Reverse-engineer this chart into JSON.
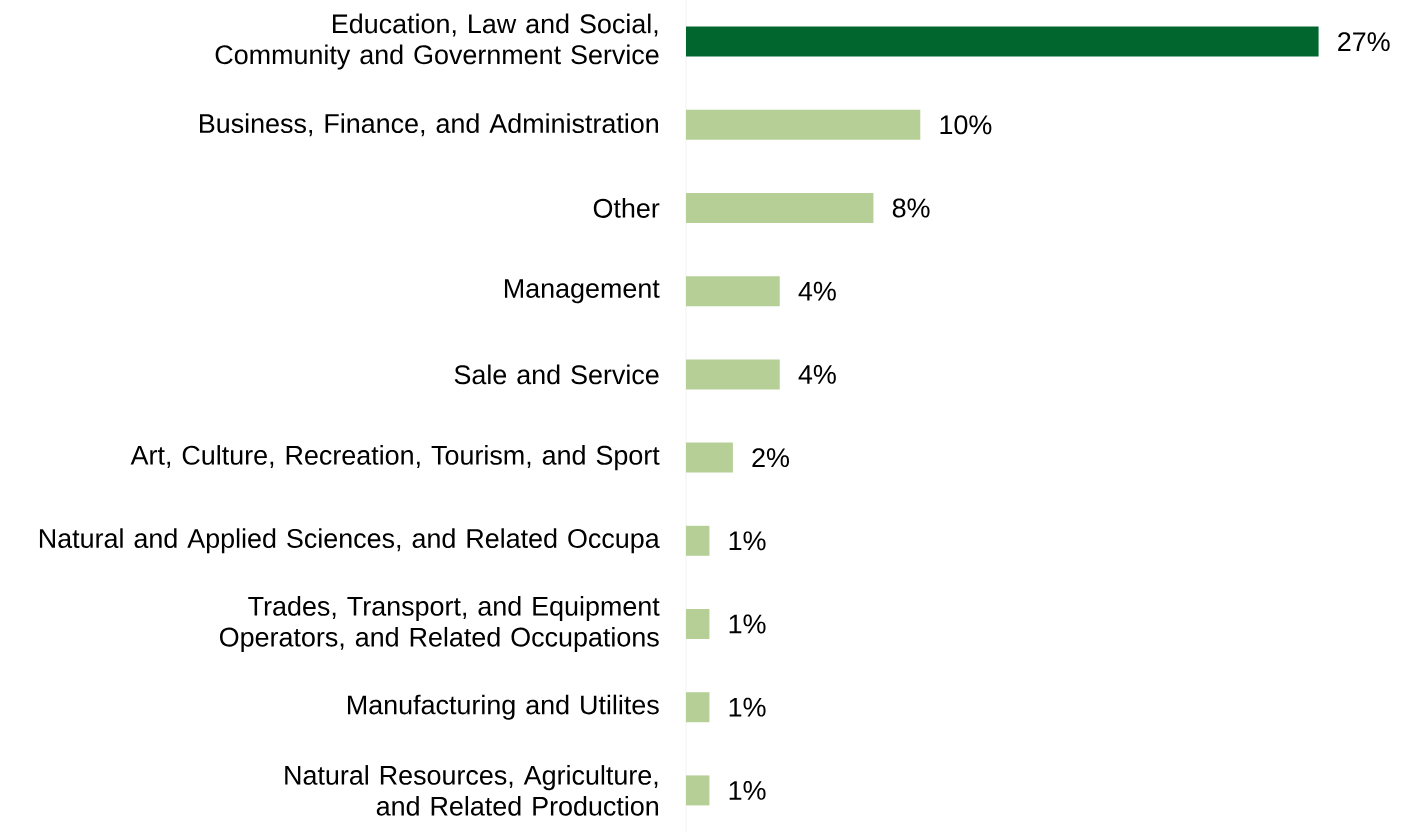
{
  "chart_data": {
    "type": "bar",
    "orientation": "horizontal",
    "categories": [
      "Education, Law and Social, Community and Government Service",
      "Business, Finance, and Administration",
      "Other",
      "Management",
      "Sale and Service",
      "Art, Culture, Recreation, Tourism, and Sport",
      "Natural and Applied Sciences, and Related Occupa",
      "Trades, Transport, and Equipment Operators, and Related Occupations",
      "Manufacturing and Utilites",
      "Natural Resources, Agriculture, and Related Production"
    ],
    "values": [
      27,
      10,
      8,
      4,
      4,
      2,
      1,
      1,
      1,
      1
    ],
    "value_labels": [
      "27%",
      "10%",
      "8%",
      "4%",
      "4%",
      "2%",
      "1%",
      "1%",
      "1%",
      "1%"
    ],
    "colors": [
      "#00662e",
      "#b5cf97",
      "#b5cf97",
      "#b5cf97",
      "#b5cf97",
      "#b5cf97",
      "#b5cf97",
      "#b5cf97",
      "#b5cf97",
      "#b5cf97"
    ]
  }
}
